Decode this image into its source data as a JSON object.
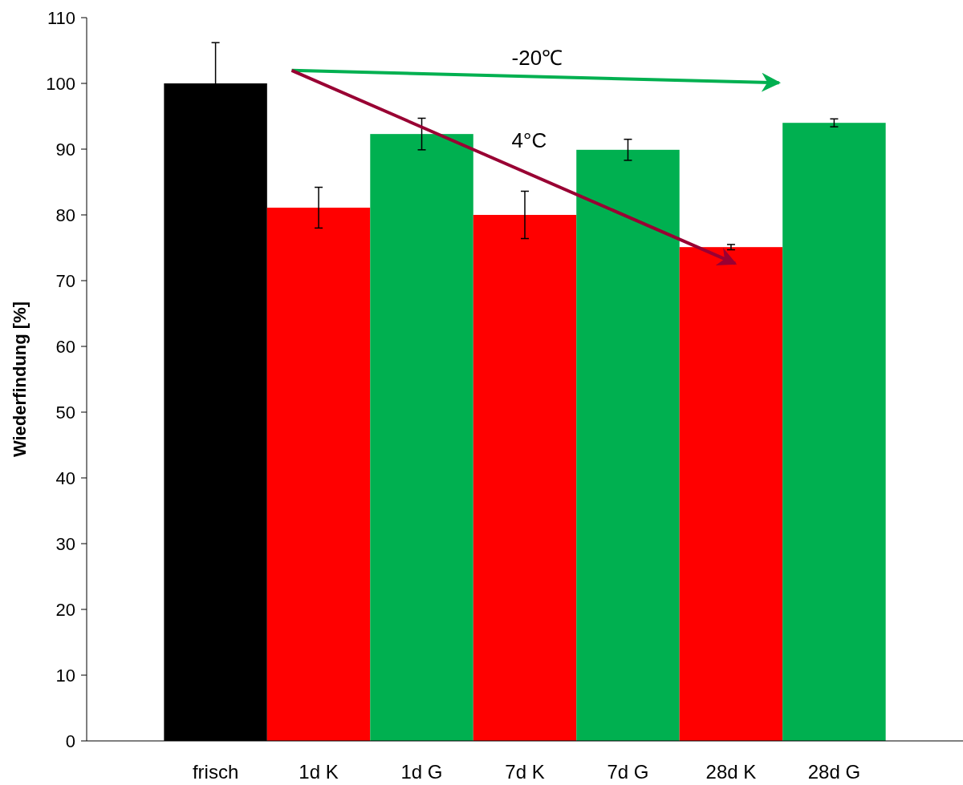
{
  "chart_data": {
    "type": "bar",
    "ylabel": "Wiederfindung [%]",
    "categories": [
      "frisch",
      "1d K",
      "1d G",
      "7d K",
      "7d G",
      "28d K",
      "28d G"
    ],
    "values": [
      100,
      81.1,
      92.3,
      80.0,
      89.9,
      75.1,
      94.0
    ],
    "errors": [
      6.2,
      3.1,
      2.4,
      3.6,
      1.6,
      0.4,
      0.6
    ],
    "colors": [
      "#000000",
      "#ff0000",
      "#00b050",
      "#ff0000",
      "#00b050",
      "#ff0000",
      "#00b050"
    ],
    "ylim": [
      0,
      110
    ],
    "yticks": [
      0,
      10,
      20,
      30,
      40,
      50,
      60,
      70,
      80,
      90,
      100,
      110
    ],
    "grid": false,
    "annotations": [
      "-20℃",
      "4°C"
    ]
  }
}
